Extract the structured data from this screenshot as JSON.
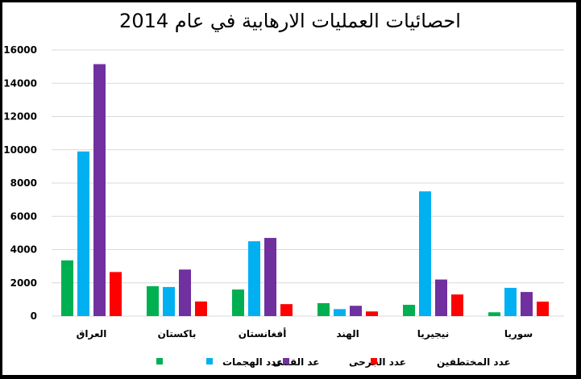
{
  "chart_data": {
    "type": "bar",
    "title": "احصائيات العمليات الارهابية في عام 2014",
    "categories": [
      "العراق",
      "باكستان",
      "أفغانستان",
      "الهند",
      "نيجيريا",
      "سوريا"
    ],
    "series": [
      {
        "name": "عدد الهجمات",
        "color": "#00B050",
        "values": [
          3350,
          1800,
          1600,
          780,
          680,
          230
        ]
      },
      {
        "name": "عد القتلى",
        "color": "#00B0F0",
        "values": [
          9900,
          1750,
          4500,
          420,
          7500,
          1700
        ]
      },
      {
        "name": "عدد الجرحى",
        "color": "#7030A0",
        "values": [
          15150,
          2800,
          4700,
          620,
          2200,
          1450
        ]
      },
      {
        "name": "عدد المختطفين",
        "color": "#FF0000",
        "values": [
          2650,
          880,
          720,
          280,
          1300,
          870
        ]
      }
    ],
    "ylim": [
      0,
      16000
    ],
    "yticks": [
      0,
      2000,
      4000,
      6000,
      8000,
      10000,
      12000,
      14000,
      16000
    ],
    "grid": true,
    "legend_position": "bottom"
  }
}
